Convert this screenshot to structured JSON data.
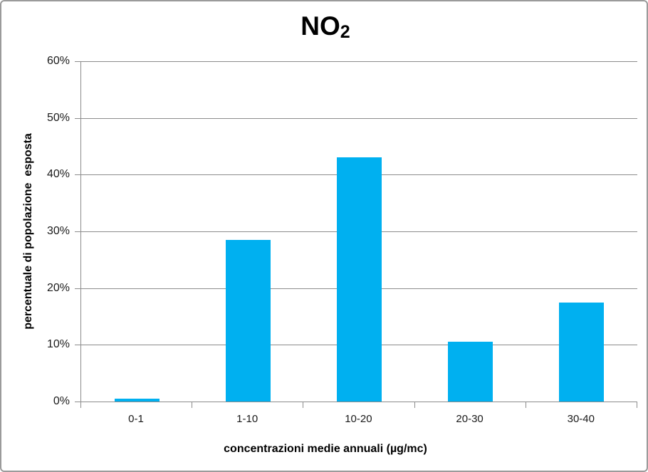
{
  "chart_data": {
    "type": "bar",
    "title": {
      "text": "NO",
      "subscript": "2"
    },
    "categories": [
      "0-1",
      "1-10",
      "10-20",
      "20-30",
      "30-40"
    ],
    "values": [
      0.5,
      28.5,
      43,
      10.5,
      17.5
    ],
    "xlabel": "concentrazioni medie annuali (µg/mc)",
    "ylabel": "percentuale di popolazione  esposta",
    "ylim": [
      0,
      60
    ],
    "ytick_step": 10,
    "ytick_labels": [
      "0%",
      "10%",
      "20%",
      "30%",
      "40%",
      "50%",
      "60%"
    ],
    "grid": true,
    "legend": false,
    "colors": {
      "bar": "#00B0F0",
      "gridline": "#8c8c8c",
      "axis": "#8c8c8c",
      "text": "#1a1a1a"
    }
  }
}
